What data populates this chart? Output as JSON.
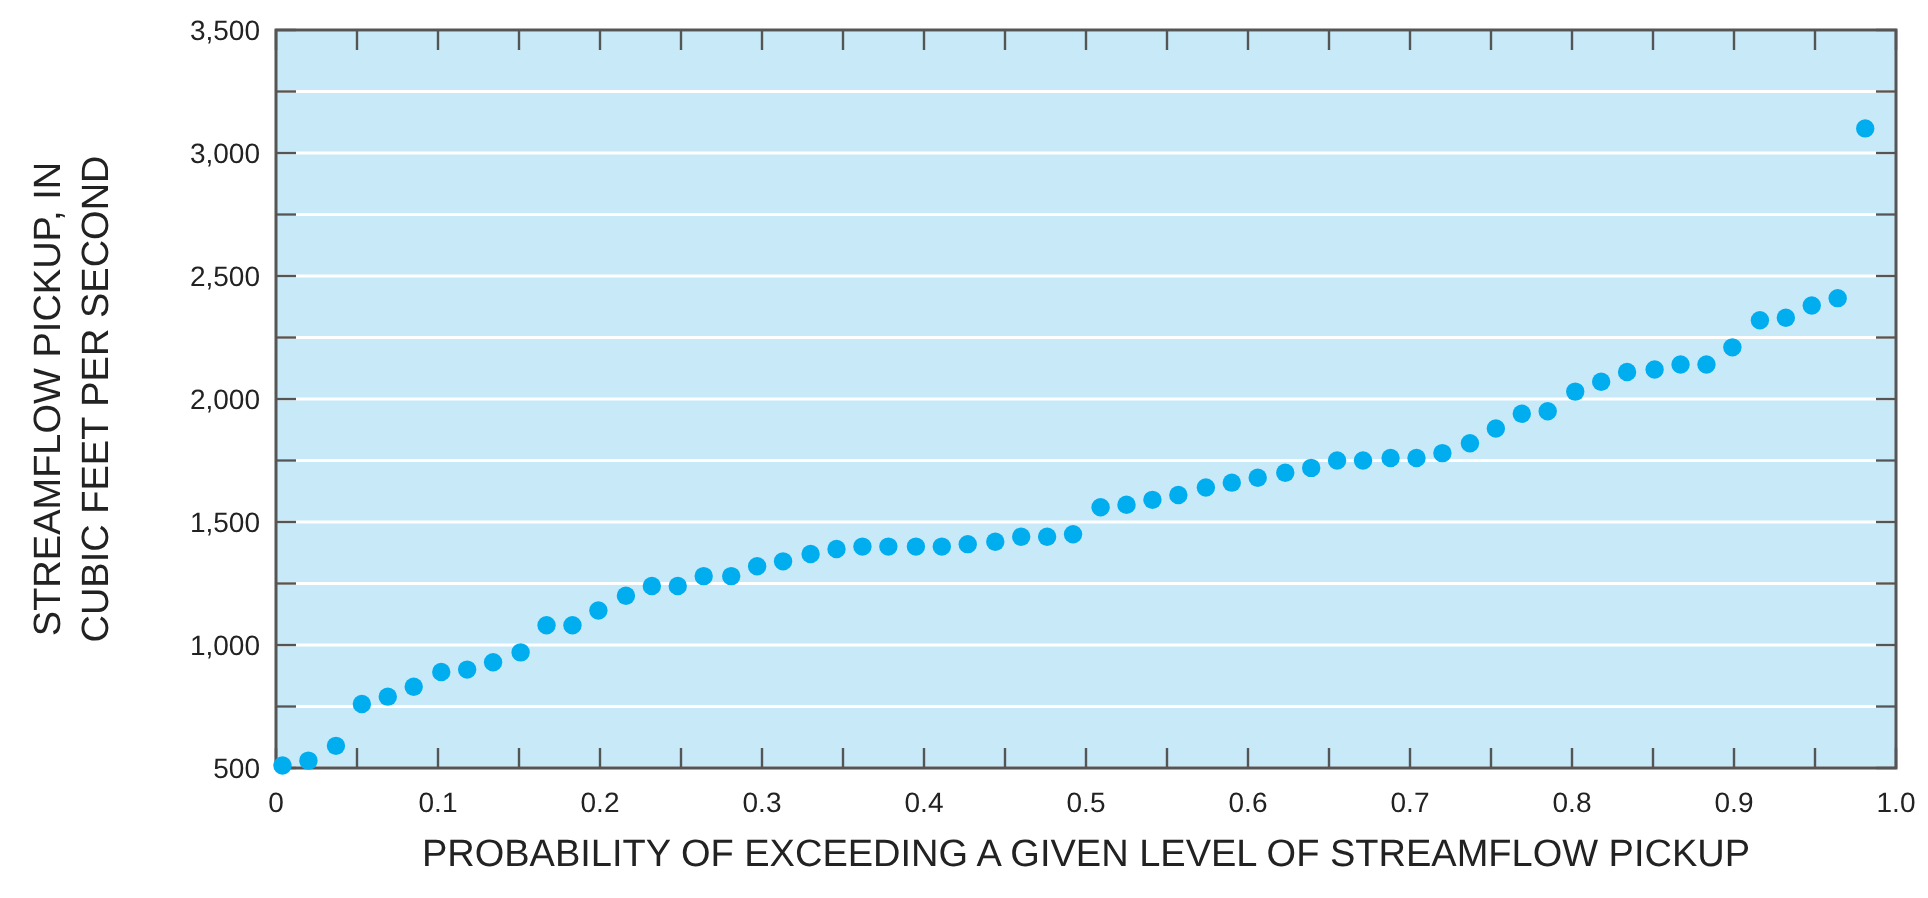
{
  "chart_data": {
    "type": "scatter",
    "xlabel": "PROBABILITY OF EXCEEDING A GIVEN LEVEL OF STREAMFLOW PICKUP",
    "ylabel": "STREAMFLOW PICKUP, IN\nCUBIC FEET PER SECOND",
    "x": [
      0.004,
      0.02,
      0.037,
      0.053,
      0.069,
      0.085,
      0.102,
      0.118,
      0.134,
      0.151,
      0.167,
      0.183,
      0.199,
      0.216,
      0.232,
      0.248,
      0.264,
      0.281,
      0.297,
      0.313,
      0.33,
      0.346,
      0.362,
      0.378,
      0.395,
      0.411,
      0.427,
      0.444,
      0.46,
      0.476,
      0.492,
      0.509,
      0.525,
      0.541,
      0.557,
      0.574,
      0.59,
      0.606,
      0.623,
      0.639,
      0.655,
      0.671,
      0.688,
      0.704,
      0.72,
      0.737,
      0.753,
      0.769,
      0.785,
      0.802,
      0.818,
      0.834,
      0.851,
      0.867,
      0.883,
      0.899,
      0.916,
      0.932,
      0.948,
      0.964,
      0.981
    ],
    "series": [
      {
        "color": "#00aeef",
        "values": [
          510,
          530,
          590,
          760,
          790,
          830,
          890,
          900,
          930,
          970,
          1080,
          1080,
          1140,
          1200,
          1240,
          1240,
          1280,
          1280,
          1320,
          1340,
          1370,
          1390,
          1400,
          1400,
          1400,
          1400,
          1410,
          1420,
          1440,
          1440,
          1450,
          1560,
          1570,
          1590,
          1610,
          1640,
          1660,
          1680,
          1700,
          1720,
          1750,
          1750,
          1760,
          1760,
          1780,
          1820,
          1880,
          1940,
          1950,
          2030,
          2070,
          2110,
          2120,
          2140,
          2140,
          2210,
          2320,
          2330,
          2380,
          2410,
          3100
        ]
      }
    ],
    "xlim": [
      0,
      1
    ],
    "xticks": [
      0,
      {
        "value": 0.05,
        "label": null
      },
      0.1,
      {
        "value": 0.15,
        "label": null
      },
      0.2,
      {
        "value": 0.25,
        "label": null
      },
      0.3,
      {
        "value": 0.35,
        "label": null
      },
      0.4,
      {
        "value": 0.45,
        "label": null
      },
      0.5,
      {
        "value": 0.55,
        "label": null
      },
      0.6,
      {
        "value": 0.65,
        "label": null
      },
      0.7,
      {
        "value": 0.75,
        "label": null
      },
      0.8,
      {
        "value": 0.85,
        "label": null
      },
      0.9,
      {
        "value": 0.95,
        "label": null
      },
      {
        "value": 1,
        "label": "1.0"
      }
    ],
    "ylim": [
      500,
      3500
    ],
    "yticks": [
      {
        "value": 500,
        "label": "500"
      },
      {
        "value": 750,
        "label": null
      },
      {
        "value": 1000,
        "label": "1,000"
      },
      {
        "value": 1250,
        "label": null
      },
      {
        "value": 1500,
        "label": "1,500"
      },
      {
        "value": 1750,
        "label": null
      },
      {
        "value": 2000,
        "label": "2,000"
      },
      {
        "value": 2250,
        "label": null
      },
      {
        "value": 2500,
        "label": "2,500"
      },
      {
        "value": 2750,
        "label": null
      },
      {
        "value": 3000,
        "label": "3,000"
      },
      {
        "value": 3250,
        "label": null
      },
      {
        "value": 3500,
        "label": "3,500"
      }
    ],
    "grid": "y",
    "marker": "circle"
  }
}
